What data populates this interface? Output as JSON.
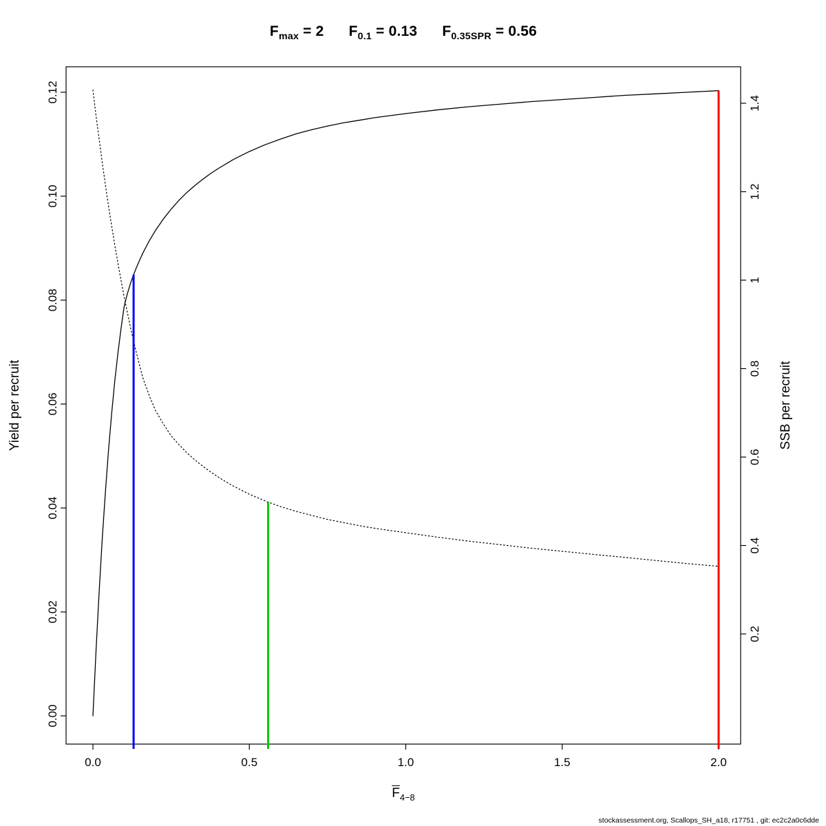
{
  "title": {
    "f_max": {
      "base": "F",
      "sub": "max",
      "eq": " = 2"
    },
    "f_01": {
      "base": "F",
      "sub": "0.1",
      "eq": " = 0.13"
    },
    "f_spr": {
      "base": "F",
      "sub": "0.35SPR",
      "eq": " = 0.56"
    }
  },
  "axes": {
    "left": {
      "label": "Yield per recruit"
    },
    "right": {
      "label": "SSB per recruit"
    },
    "x": {
      "label_base": "F",
      "label_sub": "4−8"
    }
  },
  "footer": {
    "text": "stockassessment.org, Scallops_SH_a18, r17751 , git: ec2c2a0c6dde"
  },
  "chart_data": {
    "type": "line",
    "title": "F_max = 2    F_0.1 = 0.13    F_0.35SPR = 0.56",
    "key_values": {
      "F_max": 2,
      "F_0.1": 0.13,
      "F_0.35SPR": 0.56
    },
    "x_axis": {
      "label": "Fbar 4−8",
      "range": [
        -0.086,
        2.07
      ],
      "ticks": [
        {
          "value": 0,
          "label": "0.0"
        },
        {
          "value": 0.5,
          "label": "0.5"
        },
        {
          "value": 1,
          "label": "1.0"
        },
        {
          "value": 1.5,
          "label": "1.5"
        },
        {
          "value": 2,
          "label": "2.0"
        }
      ]
    },
    "y_axis_left": {
      "label": "Yield per recruit",
      "range": [
        0,
        0.125
      ],
      "ticks": [
        {
          "value": 0,
          "label": "0.00"
        },
        {
          "value": 0.02,
          "label": "0.02"
        },
        {
          "value": 0.04,
          "label": "0.04"
        },
        {
          "value": 0.06,
          "label": "0.06"
        },
        {
          "value": 0.08,
          "label": "0.08"
        },
        {
          "value": 0.1,
          "label": "0.10"
        },
        {
          "value": 0.12,
          "label": "0.12"
        }
      ]
    },
    "y_axis_right": {
      "label": "SSB per recruit",
      "range": [
        0,
        1.48
      ],
      "ticks": [
        {
          "value": 0.2,
          "label": "0.2"
        },
        {
          "value": 0.4,
          "label": "0.4"
        },
        {
          "value": 0.6,
          "label": "0.6"
        },
        {
          "value": 0.8,
          "label": "0.8"
        },
        {
          "value": 1,
          "label": "1"
        },
        {
          "value": 1.2,
          "label": "1.2"
        },
        {
          "value": 1.4,
          "label": "1.4"
        }
      ]
    },
    "series": [
      {
        "id": "yield",
        "name": "Yield per recruit",
        "axis": "left",
        "style": "solid",
        "color": "#000000",
        "width": 1.3,
        "points": [
          [
            0,
            0
          ],
          [
            0.01,
            0.0125
          ],
          [
            0.02,
            0.024
          ],
          [
            0.03,
            0.0342
          ],
          [
            0.04,
            0.0432
          ],
          [
            0.05,
            0.0512
          ],
          [
            0.06,
            0.0583
          ],
          [
            0.07,
            0.0645
          ],
          [
            0.08,
            0.0699
          ],
          [
            0.09,
            0.0746
          ],
          [
            0.1,
            0.0788
          ],
          [
            0.11,
            0.0812
          ],
          [
            0.12,
            0.0832
          ],
          [
            0.13,
            0.0849
          ],
          [
            0.14,
            0.0864
          ],
          [
            0.15,
            0.0878
          ],
          [
            0.16,
            0.0891
          ],
          [
            0.18,
            0.0914
          ],
          [
            0.2,
            0.0934
          ],
          [
            0.225,
            0.0956
          ],
          [
            0.25,
            0.0975
          ],
          [
            0.275,
            0.0992
          ],
          [
            0.3,
            0.1007
          ],
          [
            0.325,
            0.102
          ],
          [
            0.35,
            0.1032
          ],
          [
            0.375,
            0.1043
          ],
          [
            0.4,
            0.1053
          ],
          [
            0.45,
            0.1071
          ],
          [
            0.5,
            0.1086
          ],
          [
            0.55,
            0.1099
          ],
          [
            0.6,
            0.111
          ],
          [
            0.65,
            0.112
          ],
          [
            0.7,
            0.1128
          ],
          [
            0.75,
            0.1135
          ],
          [
            0.8,
            0.1141
          ],
          [
            0.85,
            0.1146
          ],
          [
            0.9,
            0.1151
          ],
          [
            0.95,
            0.1155
          ],
          [
            1,
            0.1159
          ],
          [
            1.1,
            0.1166
          ],
          [
            1.2,
            0.1172
          ],
          [
            1.3,
            0.1177
          ],
          [
            1.4,
            0.1182
          ],
          [
            1.5,
            0.1186
          ],
          [
            1.6,
            0.119
          ],
          [
            1.7,
            0.1194
          ],
          [
            1.8,
            0.1197
          ],
          [
            1.9,
            0.12
          ],
          [
            2,
            0.1203
          ]
        ]
      },
      {
        "id": "ssb",
        "name": "SSB per recruit",
        "axis": "right",
        "style": "dotted",
        "color": "#000000",
        "width": 1.2,
        "points": [
          [
            0,
            1.43
          ],
          [
            0.01,
            1.372
          ],
          [
            0.02,
            1.318
          ],
          [
            0.03,
            1.265
          ],
          [
            0.04,
            1.215
          ],
          [
            0.05,
            1.167
          ],
          [
            0.06,
            1.122
          ],
          [
            0.07,
            1.079
          ],
          [
            0.08,
            1.038
          ],
          [
            0.09,
            0.999
          ],
          [
            0.1,
            0.962
          ],
          [
            0.11,
            0.927
          ],
          [
            0.12,
            0.894
          ],
          [
            0.13,
            0.862
          ],
          [
            0.14,
            0.833
          ],
          [
            0.15,
            0.805
          ],
          [
            0.16,
            0.778
          ],
          [
            0.18,
            0.739
          ],
          [
            0.2,
            0.705
          ],
          [
            0.225,
            0.675
          ],
          [
            0.25,
            0.648
          ],
          [
            0.275,
            0.628
          ],
          [
            0.3,
            0.61
          ],
          [
            0.325,
            0.594
          ],
          [
            0.35,
            0.58
          ],
          [
            0.375,
            0.567
          ],
          [
            0.4,
            0.555
          ],
          [
            0.425,
            0.544
          ],
          [
            0.45,
            0.534
          ],
          [
            0.475,
            0.525
          ],
          [
            0.5,
            0.516
          ],
          [
            0.53,
            0.507
          ],
          [
            0.56,
            0.498
          ],
          [
            0.6,
            0.488
          ],
          [
            0.65,
            0.477
          ],
          [
            0.7,
            0.468
          ],
          [
            0.75,
            0.459
          ],
          [
            0.8,
            0.452
          ],
          [
            0.85,
            0.445
          ],
          [
            0.9,
            0.439
          ],
          [
            0.95,
            0.434
          ],
          [
            1,
            0.429
          ],
          [
            1.1,
            0.419
          ],
          [
            1.2,
            0.41
          ],
          [
            1.3,
            0.402
          ],
          [
            1.4,
            0.394
          ],
          [
            1.5,
            0.387
          ],
          [
            1.6,
            0.38
          ],
          [
            1.7,
            0.373
          ],
          [
            1.8,
            0.366
          ],
          [
            1.9,
            0.359
          ],
          [
            2,
            0.353
          ]
        ]
      }
    ],
    "reference_lines": [
      {
        "id": "f01",
        "label": "F0.1 = 0.13",
        "x": 0.13,
        "axis": "left",
        "top_value": 0.0849,
        "color": "#0000ff"
      },
      {
        "id": "f035spr",
        "label": "F0.35SPR = 0.56",
        "x": 0.56,
        "axis": "right",
        "top_value": 0.498,
        "color": "#00cd00"
      },
      {
        "id": "fmax",
        "label": "Fmax = 2",
        "x": 2,
        "axis": "left",
        "top_value": 0.1203,
        "color": "#ff0000"
      }
    ],
    "legend": "none",
    "grid": false
  }
}
